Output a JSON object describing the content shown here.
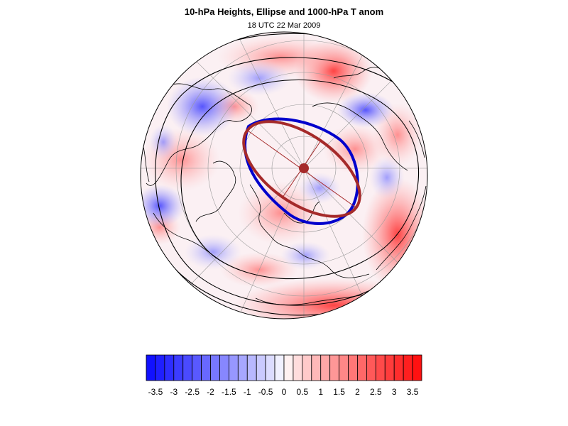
{
  "title": "10-hPa Heights, Ellipse and 1000-hPa T anom",
  "subtitle": "18 UTC 22 Mar 2009",
  "colorbar": {
    "tick_labels": [
      "-3.5",
      "-3",
      "-2.5",
      "-2",
      "-1.5",
      "-1",
      "-0.5",
      "0",
      "0.5",
      "1",
      "1.5",
      "2",
      "2.5",
      "3",
      "3.5"
    ],
    "min": -3.75,
    "max": 3.75,
    "step": 0.25,
    "colors": {
      "negative_max": "#0a0aff",
      "neutral": "#ffffff",
      "positive_max": "#ff0a0a"
    }
  },
  "overlays": {
    "observed_vortex_ellipse_color": "#0000cc",
    "fitted_ellipse_color": "#a52a2a",
    "vortex_centroid_color": "#a52a2a",
    "height_contour_color": "#000000",
    "coastline_color": "#000000"
  }
}
